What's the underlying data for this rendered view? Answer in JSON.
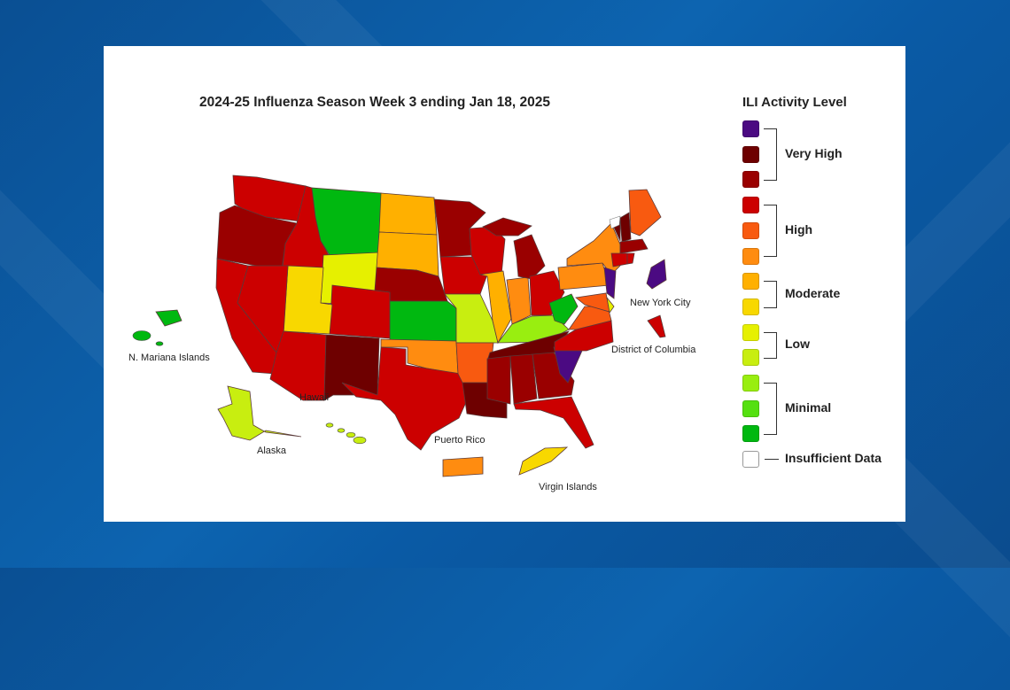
{
  "title": "2024-25 Influenza Season Week 3 ending Jan 18, 2025",
  "legend": {
    "title": "ILI Activity Level",
    "levels": [
      {
        "level": 13,
        "color": "#4b0a82"
      },
      {
        "level": 12,
        "color": "#6e0000"
      },
      {
        "level": 11,
        "color": "#9a0000"
      },
      {
        "level": 10,
        "color": "#cc0000"
      },
      {
        "level": 9,
        "color": "#f85a10"
      },
      {
        "level": 8,
        "color": "#ff8c10"
      },
      {
        "level": 7,
        "color": "#ffb000"
      },
      {
        "level": 6,
        "color": "#f8d800"
      },
      {
        "level": 5,
        "color": "#e6f000"
      },
      {
        "level": 4,
        "color": "#c8ee10"
      },
      {
        "level": 3,
        "color": "#99ee10"
      },
      {
        "level": 2,
        "color": "#55e010"
      },
      {
        "level": 1,
        "color": "#00b810"
      }
    ],
    "insufficient": {
      "label": "Insufficient Data",
      "color": "#ffffff"
    },
    "groups": [
      {
        "label": "Very High",
        "levels": [
          13,
          12,
          11
        ]
      },
      {
        "label": "High",
        "levels": [
          10,
          9,
          8
        ]
      },
      {
        "label": "Moderate",
        "levels": [
          7,
          6
        ]
      },
      {
        "label": "Low",
        "levels": [
          5,
          4
        ]
      },
      {
        "label": "Minimal",
        "levels": [
          3,
          2,
          1
        ]
      }
    ]
  },
  "labels": {
    "nyc": "New York City",
    "dc": "District of Columbia",
    "nmi": "N. Mariana Islands",
    "hawaii": "Hawaii",
    "alaska": "Alaska",
    "pr": "Puerto Rico",
    "vi": "Virgin Islands"
  },
  "activity": {
    "WA": 10,
    "OR": 11,
    "CA": 10,
    "NV": 10,
    "ID": 10,
    "MT": 1,
    "WY": 5,
    "UT": 6,
    "AZ": 10,
    "CO": 10,
    "NM": 12,
    "ND": 7,
    "SD": 7,
    "NE": 11,
    "KS": 1,
    "OK": 8,
    "TX": 10,
    "MN": 11,
    "IA": 10,
    "MO": 4,
    "AR": 9,
    "LA": 12,
    "WI": 10,
    "IL": 7,
    "MI": 11,
    "IN": 8,
    "OH": 10,
    "KY": 3,
    "TN": 12,
    "MS": 11,
    "AL": 11,
    "GA": 11,
    "FL": 10,
    "SC": 13,
    "NC": 10,
    "VA": 9,
    "WV": 1,
    "MD": 9,
    "DE": 5,
    "PA": 8,
    "NJ": 13,
    "NY": 8,
    "CT": 10,
    "RI": 10,
    "MA": 11,
    "VT": 12,
    "NH": 12,
    "ME": 9,
    "NYC": 13,
    "DC": 10,
    "AK": 4,
    "HI": 4,
    "PR": 8,
    "VI": 6,
    "NMI": 1
  }
}
